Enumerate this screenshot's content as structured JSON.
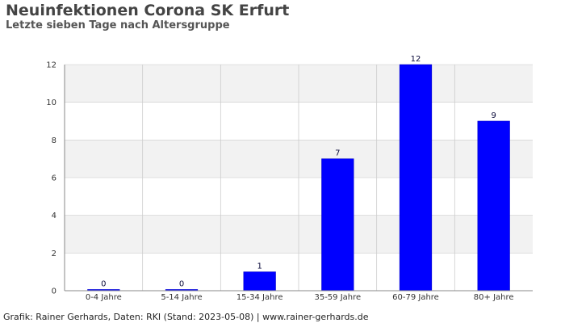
{
  "header": {
    "title": "Neuinfektionen Corona SK Erfurt",
    "subtitle": "Letzte sieben Tage nach Altersgruppe"
  },
  "footer": {
    "credit": "Grafik: Rainer Gerhards, Daten: RKI (Stand: 2023-05-08) | www.rainer-gerhards.de"
  },
  "colors": {
    "bar": "#0000ff",
    "band": "#f2f2f2",
    "grid": "#cccccc",
    "axis": "#888888"
  },
  "chart_data": {
    "type": "bar",
    "title": "Neuinfektionen Corona SK Erfurt",
    "subtitle": "Letzte sieben Tage nach Altersgruppe",
    "categories": [
      "0-4 Jahre",
      "5-14 Jahre",
      "15-34 Jahre",
      "35-59 Jahre",
      "60-79 Jahre",
      "80+ Jahre"
    ],
    "values": [
      0,
      0,
      1,
      7,
      12,
      9
    ],
    "xlabel": "",
    "ylabel": "",
    "ylim": [
      0,
      12
    ],
    "yticks": [
      0,
      2,
      4,
      6,
      8,
      10,
      12
    ],
    "grid": true,
    "legend": "none"
  }
}
